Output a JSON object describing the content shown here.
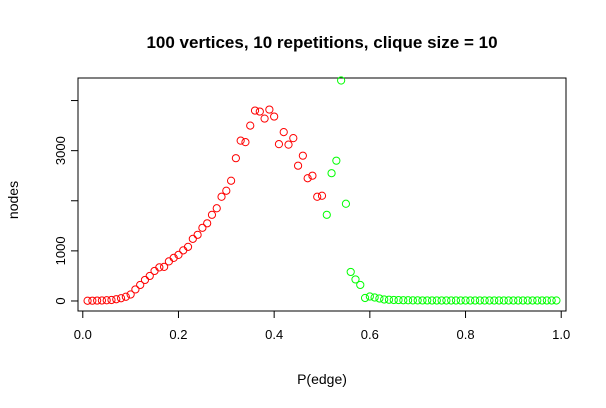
{
  "chart_data": {
    "type": "scatter",
    "title": "100 vertices, 10 repetitions, clique size = 10",
    "xlabel": "P(edge)",
    "ylabel": "nodes",
    "xlim": [
      -0.01,
      1.01
    ],
    "ylim": [
      -200,
      4450
    ],
    "x_ticks": [
      0.0,
      0.2,
      0.4,
      0.6,
      0.8,
      1.0
    ],
    "x_tick_labels": [
      "0.0",
      "0.2",
      "0.4",
      "0.6",
      "0.8",
      "1.0"
    ],
    "y_ticks": [
      0,
      1000,
      3000
    ],
    "y_tick_labels": [
      "0",
      "1000",
      "3000"
    ],
    "grid": false,
    "marker": "open-circle",
    "series": [
      {
        "color": "#ff0000",
        "points": [
          [
            0.01,
            5
          ],
          [
            0.02,
            6
          ],
          [
            0.03,
            8
          ],
          [
            0.04,
            10
          ],
          [
            0.05,
            14
          ],
          [
            0.06,
            20
          ],
          [
            0.07,
            35
          ],
          [
            0.08,
            55
          ],
          [
            0.09,
            85
          ],
          [
            0.1,
            130
          ],
          [
            0.11,
            230
          ],
          [
            0.12,
            320
          ],
          [
            0.13,
            420
          ],
          [
            0.14,
            500
          ],
          [
            0.15,
            600
          ],
          [
            0.16,
            670
          ],
          [
            0.17,
            680
          ],
          [
            0.18,
            790
          ],
          [
            0.19,
            860
          ],
          [
            0.2,
            920
          ],
          [
            0.21,
            1010
          ],
          [
            0.22,
            1080
          ],
          [
            0.23,
            1240
          ],
          [
            0.24,
            1320
          ],
          [
            0.25,
            1460
          ],
          [
            0.26,
            1550
          ],
          [
            0.27,
            1720
          ],
          [
            0.28,
            1850
          ],
          [
            0.29,
            2080
          ],
          [
            0.3,
            2200
          ],
          [
            0.31,
            2400
          ],
          [
            0.32,
            2850
          ],
          [
            0.33,
            3200
          ],
          [
            0.34,
            3170
          ],
          [
            0.35,
            3500
          ],
          [
            0.36,
            3800
          ],
          [
            0.37,
            3780
          ],
          [
            0.38,
            3640
          ],
          [
            0.39,
            3820
          ],
          [
            0.4,
            3680
          ],
          [
            0.41,
            3130
          ],
          [
            0.42,
            3370
          ],
          [
            0.43,
            3120
          ],
          [
            0.44,
            3250
          ],
          [
            0.45,
            2700
          ],
          [
            0.46,
            2900
          ],
          [
            0.47,
            2450
          ],
          [
            0.48,
            2500
          ],
          [
            0.49,
            2080
          ],
          [
            0.5,
            2100
          ]
        ]
      },
      {
        "color": "#00ff00",
        "points": [
          [
            0.51,
            1720
          ],
          [
            0.52,
            2550
          ],
          [
            0.53,
            2800
          ],
          [
            0.54,
            4400
          ],
          [
            0.55,
            1940
          ],
          [
            0.56,
            580
          ],
          [
            0.57,
            430
          ],
          [
            0.58,
            320
          ],
          [
            0.59,
            60
          ],
          [
            0.6,
            90
          ],
          [
            0.61,
            70
          ],
          [
            0.62,
            50
          ],
          [
            0.63,
            30
          ],
          [
            0.64,
            25
          ],
          [
            0.65,
            20
          ],
          [
            0.66,
            18
          ],
          [
            0.67,
            15
          ],
          [
            0.68,
            14
          ],
          [
            0.69,
            12
          ],
          [
            0.7,
            12
          ],
          [
            0.71,
            11
          ],
          [
            0.72,
            11
          ],
          [
            0.73,
            10
          ],
          [
            0.74,
            10
          ],
          [
            0.75,
            10
          ],
          [
            0.76,
            10
          ],
          [
            0.77,
            10
          ],
          [
            0.78,
            10
          ],
          [
            0.79,
            10
          ],
          [
            0.8,
            10
          ],
          [
            0.81,
            10
          ],
          [
            0.82,
            10
          ],
          [
            0.83,
            10
          ],
          [
            0.84,
            10
          ],
          [
            0.85,
            10
          ],
          [
            0.86,
            10
          ],
          [
            0.87,
            10
          ],
          [
            0.88,
            10
          ],
          [
            0.89,
            10
          ],
          [
            0.9,
            10
          ],
          [
            0.91,
            10
          ],
          [
            0.92,
            10
          ],
          [
            0.93,
            10
          ],
          [
            0.94,
            10
          ],
          [
            0.95,
            10
          ],
          [
            0.96,
            10
          ],
          [
            0.97,
            10
          ],
          [
            0.98,
            10
          ],
          [
            0.99,
            10
          ]
        ]
      }
    ]
  }
}
